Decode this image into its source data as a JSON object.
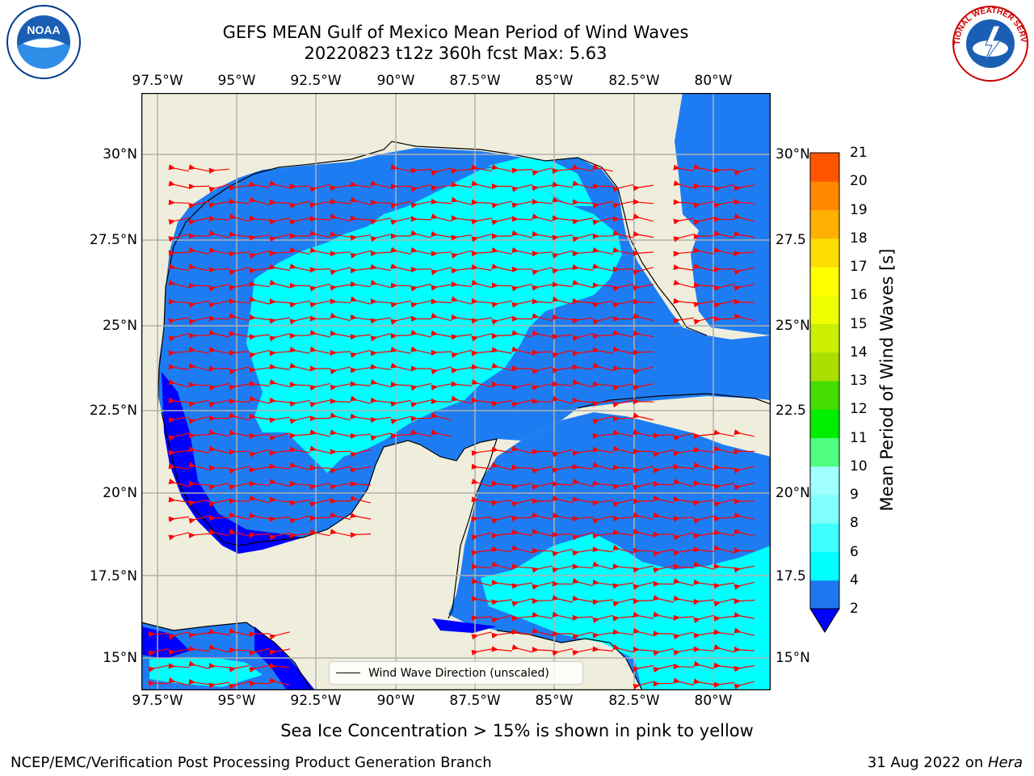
{
  "title_line1": "GEFS MEAN Gulf of Mexico Mean Period of Wind Waves",
  "title_line2": "20220823 t12z 360h fcst   Max: 5.63",
  "logos": {
    "left": "NOAA",
    "right": "NATIONAL WEATHER SERVICE"
  },
  "lon_ticks": [
    "97.5°W",
    "95°W",
    "92.5°W",
    "90°W",
    "87.5°W",
    "85°W",
    "82.5°W",
    "80°W"
  ],
  "lat_ticks": [
    "30°N",
    "27.5°N",
    "25°N",
    "22.5°N",
    "20°N",
    "17.5°N",
    "15°N"
  ],
  "lat_ticks_right": [
    "30°N",
    "27.5",
    "25°N",
    "22.5",
    "20°N",
    "17.5",
    "15°N"
  ],
  "legend_label": "Wind Wave Direction (unscaled)",
  "colorbar": {
    "label": "Mean Period of Wind Waves [s]",
    "ticks": [
      "2",
      "4",
      "6",
      "8",
      "9",
      "10",
      "11",
      "12",
      "13",
      "14",
      "15",
      "16",
      "17",
      "18",
      "19",
      "20",
      "21"
    ],
    "colors": [
      "#1f77f0",
      "#00ffff",
      "#40ffff",
      "#80ffff",
      "#a0ffff",
      "#50ff80",
      "#00ee00",
      "#44dd00",
      "#aadd00",
      "#ccee00",
      "#eeff00",
      "#ffff00",
      "#ffdd00",
      "#ffb000",
      "#ff8800",
      "#ff5500",
      "#ff2200",
      "#ff0000"
    ],
    "under_color": "#0000ff"
  },
  "map_colors": {
    "land": "#efeedc",
    "water_2_4": "#1e7cf2",
    "water_4_6": "#00ffff",
    "water_lt_2": "#0000ff",
    "arrow": "#ff0000"
  },
  "footer_left": "NCEP/EMC/Verification Post Processing Product Generation Branch",
  "footer_center": "Sea Ice Concentration > 15% is shown in pink to yellow",
  "footer_right_prefix": "31 Aug 2022 on ",
  "footer_right_host": "Hera"
}
